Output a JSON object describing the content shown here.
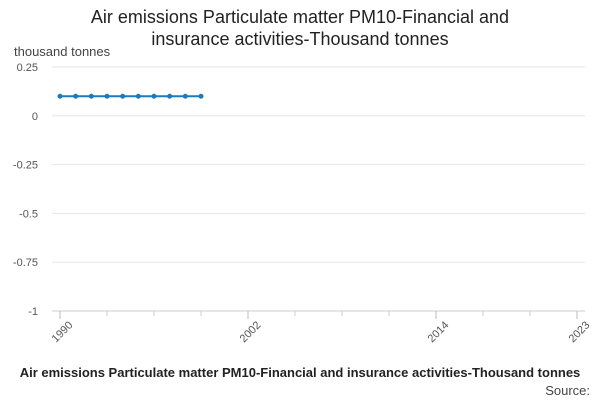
{
  "chart_data": {
    "type": "line",
    "title_lines": [
      "Air emissions Particulate matter PM10-Financial and",
      "insurance activities-Thousand tonnes"
    ],
    "ylabel": "thousand tonnes",
    "xlabel": "",
    "xlim": [
      1990,
      2023
    ],
    "ylim": [
      -1,
      0.25
    ],
    "x_ticks": [
      1990,
      2002,
      2014,
      2023
    ],
    "y_ticks": [
      0.25,
      0,
      -0.25,
      -0.5,
      -0.75,
      -1
    ],
    "y_tick_labels": [
      "0.25",
      "0",
      "-0.25",
      "-0.5",
      "-0.75",
      "-1"
    ],
    "grid": true,
    "series": [
      {
        "name": "Air emissions Particulate matter PM10-Financial and insurance activities-Thousand tonnes",
        "color": "#1a7bbd",
        "x": [
          1990,
          1991,
          1992,
          1993,
          1994,
          1995,
          1996,
          1997,
          1998,
          1999
        ],
        "values": [
          0.1,
          0.1,
          0.1,
          0.1,
          0.1,
          0.1,
          0.1,
          0.1,
          0.1,
          0.1
        ]
      }
    ],
    "legend_position": "bottom",
    "source_label": "Source:"
  }
}
